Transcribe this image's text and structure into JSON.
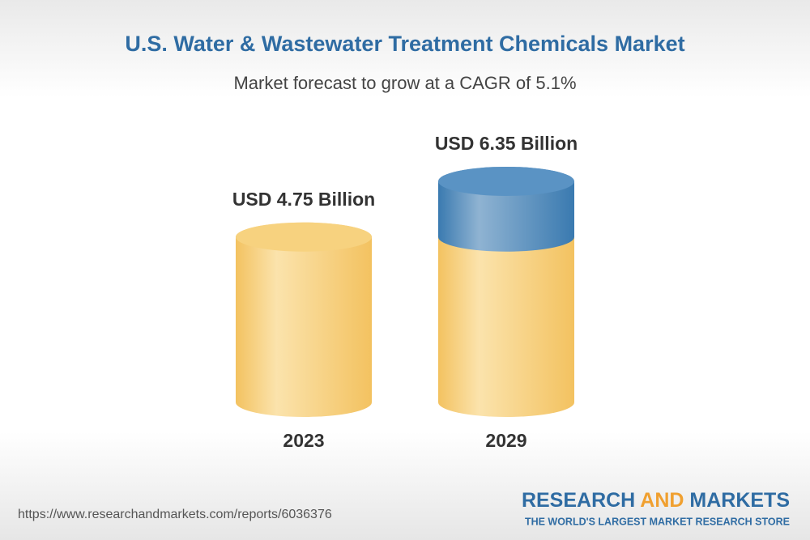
{
  "chart_data": {
    "type": "cylinder-bar",
    "title": "U.S. Water & Wastewater Treatment Chemicals Market",
    "subtitle": "Market forecast to grow at a CAGR of 5.1%",
    "categories": [
      "2023",
      "2029"
    ],
    "values": [
      4.75,
      6.35
    ],
    "value_labels": [
      "USD 4.75 Billion",
      "USD 6.35 Billion"
    ],
    "base_color": "#f3c260",
    "growth_color": "#3a7ab0"
  },
  "footer": {
    "source": "https://www.researchandmarkets.com/reports/6036376",
    "logo_word1": "RESEARCH",
    "logo_word2": "AND",
    "logo_word3": "MARKETS",
    "tagline": "THE WORLD'S LARGEST MARKET RESEARCH STORE"
  }
}
